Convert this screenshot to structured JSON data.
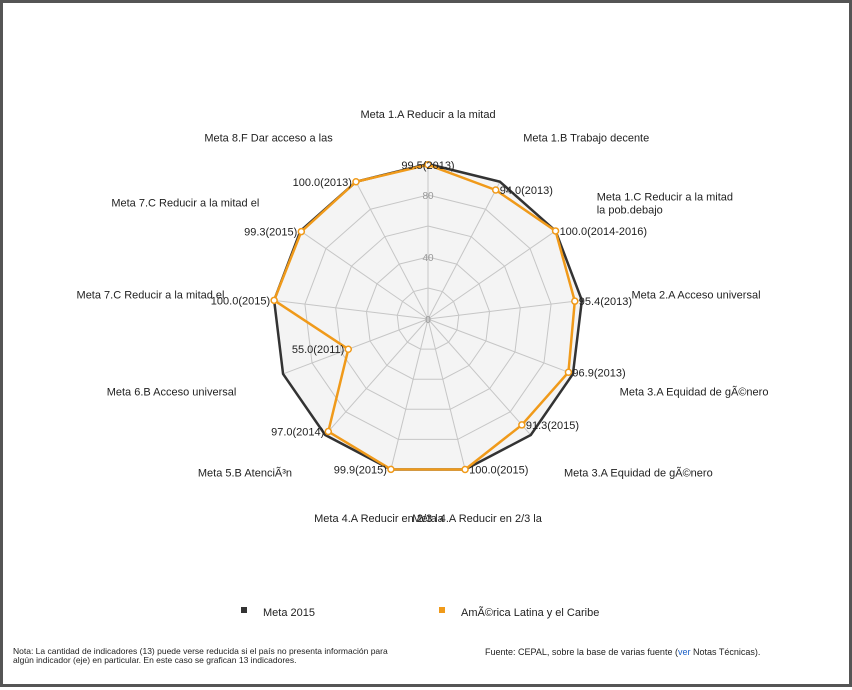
{
  "chart_data": {
    "type": "radar",
    "axes": [
      "Meta 1.A Reducir a la mitad",
      "Meta 1.B Trabajo decente",
      "Meta 1.C Reducir a la mitad la pob.debajo",
      "Meta 2.A Acceso universal",
      "Meta 3.A Equidad de gÃ©nero",
      "Meta 3.A Equidad de gÃ©nero",
      "Meta 4.A Reducir en 2/3 la",
      "Meta 4.A Reducir en 2/3 la",
      "Meta 5.B AtenciÃ³n",
      "Meta 6.B Acceso universal",
      "Meta 7.C Reducir a la mitad el",
      "Meta 7.C Reducir a la mitad el",
      "Meta 8.F Dar acceso a las"
    ],
    "ticks": [
      "0",
      "40",
      "80"
    ],
    "rmax": 100,
    "grid_levels": 5,
    "series": [
      {
        "name": "Meta 2015",
        "color": "#333333",
        "values": [
          100,
          100,
          100,
          100,
          100,
          100,
          100,
          100,
          100,
          100,
          100,
          100,
          100
        ]
      },
      {
        "name": "AmÃ©rica Latina y el Caribe",
        "color": "#f09a1a",
        "values": [
          99.5,
          94.0,
          100.0,
          95.4,
          96.9,
          91.3,
          100.0,
          99.9,
          97.0,
          55.0,
          100.0,
          99.3,
          100.0
        ],
        "labels": [
          "99.5(2013)",
          "94.0(2013)",
          "100.0(2014-2016)",
          "95.4(2013)",
          "96.9(2013)",
          "91.3(2015)",
          "100.0(2015)",
          "99.9(2015)",
          "97.0(2014)",
          "55.0(2011)",
          "100.0(2015)",
          "99.3(2015)",
          "100.0(2013)"
        ]
      }
    ]
  },
  "legend": {
    "item1": "Meta 2015",
    "item2": "AmÃ©rica Latina y el Caribe"
  },
  "note": "Nota: La cantidad de indicadores (13) puede verse reducida si el país no presenta información para algún indicador (eje) en particular. En este caso se grafican 13 indicadores.",
  "source": {
    "prefix": "Fuente: CEPAL, sobre la base de varias fuente (",
    "link": "ver",
    "suffix": " Notas Técnicas)."
  }
}
